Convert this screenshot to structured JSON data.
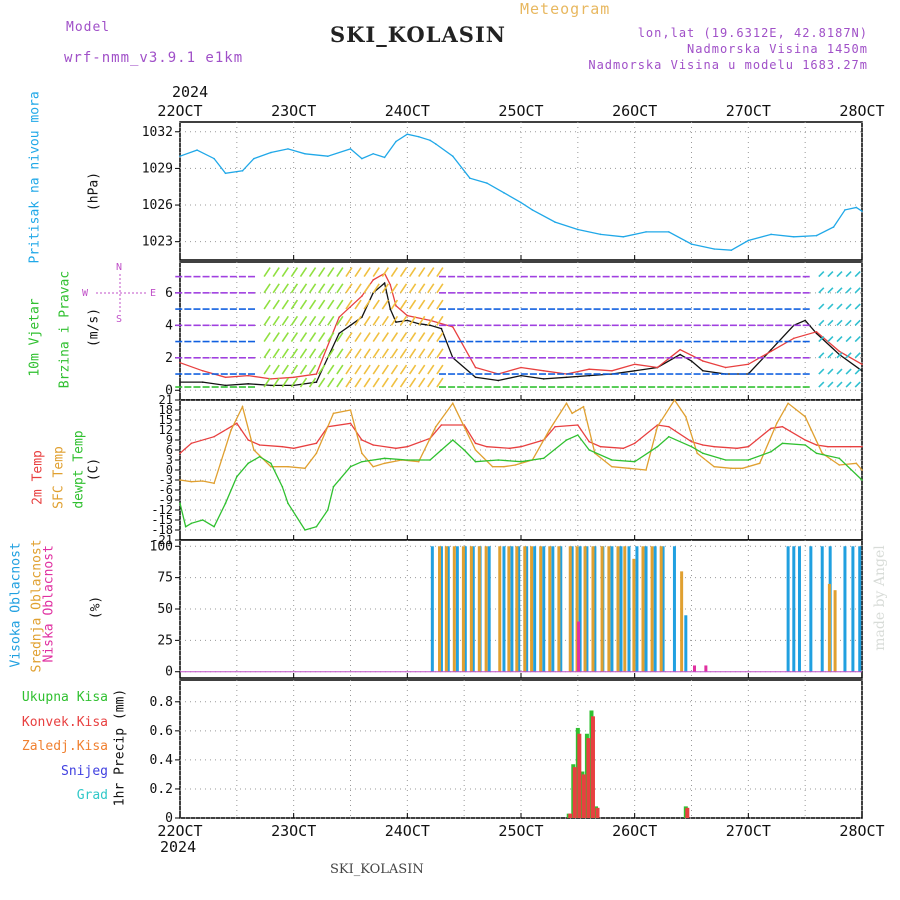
{
  "header": {
    "model_label": "Model",
    "model_name": "wrf-nmm_v3.9.1  e1km",
    "meteogram_label": "Meteogram",
    "station_title": "SKI_KOLASIN",
    "lonlat": "lon,lat (19.6312E, 42.8187N)",
    "altitude": "Nadmorska Visina 1450m",
    "model_altitude": "Nadmorska Visina u modelu 1683.27m",
    "colors": {
      "model": "#a050c8",
      "meteogram": "#e8b860",
      "info": "#a050c8"
    }
  },
  "footer": {
    "station": "SKI_KOLASIN",
    "watermark": "made by Angel"
  },
  "time_axis": {
    "top_year": "2024",
    "bottom_year": "2024",
    "labels": [
      "22OCT",
      "23OCT",
      "24OCT",
      "25OCT",
      "26OCT",
      "27OCT",
      "28OCT"
    ]
  },
  "panels": {
    "pressure": {
      "ylabel_left": "Pritisak na nivou mora",
      "ylabel_unit": "(hPa)",
      "colors": {
        "left": "#20a8e8"
      }
    },
    "wind": {
      "ylabel_left_1": "10m Vjetar",
      "ylabel_left_2": "Brzina i Pravac",
      "ylabel_unit": "(m/s)",
      "compass": [
        "N",
        "W",
        "E",
        "S"
      ],
      "colors": {
        "left": "#30c030",
        "compass": "#c050c8"
      }
    },
    "temperature": {
      "ylabel_1": "2m Temp",
      "ylabel_2": "SFC Temp",
      "ylabel_3": "dewpt Temp",
      "ylabel_unit": "(C)",
      "colors": {
        "t2m": "#e84040",
        "sfc": "#e0a030",
        "dewpt": "#30c030"
      }
    },
    "clouds": {
      "ylabel_1": "Visoka Oblacnost",
      "ylabel_2": "Srednja Oblacnost",
      "ylabel_3": "Niska Oblacnost",
      "ylabel_unit": "(%)",
      "colors": {
        "high": "#20a0e0",
        "mid": "#e0a030",
        "low": "#e030a0"
      }
    },
    "precip": {
      "legend": [
        "Ukupna Kisa",
        "Konvek.Kisa",
        "Zaledj.Kisa",
        "Snijeg",
        "Grad"
      ],
      "legend_colors": [
        "#30c030",
        "#e84040",
        "#f08030",
        "#4040e0",
        "#30c8c8"
      ],
      "ylabel_unit": "1hr Precip (mm)"
    }
  },
  "chart_data": [
    {
      "type": "line",
      "title": "",
      "series": [
        {
          "name": "Pritisak na nivou mora",
          "color": "#20a8e8",
          "x": [
            22.0,
            22.15,
            22.3,
            22.4,
            22.55,
            22.65,
            22.8,
            22.95,
            23.1,
            23.3,
            23.5,
            23.6,
            23.7,
            23.8,
            23.9,
            24.0,
            24.1,
            24.2,
            24.25,
            24.4,
            24.55,
            24.7,
            24.85,
            25.0,
            25.1,
            25.3,
            25.5,
            25.7,
            25.9,
            26.1,
            26.3,
            26.5,
            26.7,
            26.85,
            27.0,
            27.2,
            27.4,
            27.6,
            27.75,
            27.85,
            27.95,
            28.0
          ],
          "values": [
            1030.0,
            1030.5,
            1029.8,
            1028.6,
            1028.8,
            1029.8,
            1030.3,
            1030.6,
            1030.2,
            1030.0,
            1030.6,
            1029.8,
            1030.2,
            1029.9,
            1031.2,
            1031.8,
            1031.6,
            1031.3,
            1031.0,
            1030.0,
            1028.2,
            1027.8,
            1027.0,
            1026.2,
            1025.6,
            1024.6,
            1024.0,
            1023.6,
            1023.4,
            1023.8,
            1023.8,
            1022.8,
            1022.4,
            1022.3,
            1023.1,
            1023.6,
            1023.4,
            1023.5,
            1024.2,
            1025.6,
            1025.8,
            1025.5
          ]
        }
      ],
      "ylim": [
        1021.5,
        1032.8
      ],
      "yticks": [
        1023,
        1026,
        1029,
        1032
      ],
      "xlim": [
        22,
        28
      ]
    },
    {
      "type": "line",
      "title": "",
      "series": [
        {
          "name": "wind speed",
          "color": "#111111",
          "x": [
            22.0,
            22.2,
            22.4,
            22.6,
            22.8,
            23.0,
            23.2,
            23.4,
            23.5,
            23.6,
            23.7,
            23.8,
            23.85,
            23.9,
            24.0,
            24.1,
            24.2,
            24.3,
            24.4,
            24.6,
            24.8,
            25.0,
            25.2,
            25.4,
            25.6,
            25.8,
            26.0,
            26.2,
            26.4,
            26.5,
            26.6,
            26.8,
            27.0,
            27.2,
            27.4,
            27.5,
            27.6,
            27.8,
            28.0
          ],
          "values": [
            0.5,
            0.5,
            0.3,
            0.4,
            0.3,
            0.3,
            0.5,
            3.5,
            4.0,
            4.5,
            6.0,
            6.6,
            5.0,
            4.2,
            4.3,
            4.1,
            4.0,
            3.8,
            2.0,
            0.8,
            0.6,
            0.9,
            0.7,
            0.8,
            0.9,
            1.0,
            1.2,
            1.4,
            2.2,
            1.8,
            1.2,
            1.0,
            1.0,
            2.5,
            4.0,
            4.3,
            3.5,
            2.2,
            1.2
          ]
        },
        {
          "name": "gust",
          "color": "#e84040",
          "x": [
            22.0,
            22.2,
            22.4,
            22.6,
            22.8,
            23.0,
            23.2,
            23.4,
            23.6,
            23.7,
            23.8,
            23.85,
            23.9,
            24.0,
            24.2,
            24.4,
            24.6,
            24.8,
            25.0,
            25.2,
            25.4,
            25.6,
            25.8,
            26.0,
            26.2,
            26.4,
            26.6,
            26.8,
            27.0,
            27.2,
            27.4,
            27.6,
            27.8,
            28.0
          ],
          "values": [
            1.7,
            1.2,
            0.8,
            0.9,
            0.7,
            0.8,
            1.0,
            4.5,
            5.8,
            6.8,
            7.2,
            6.5,
            5.2,
            4.6,
            4.3,
            3.9,
            1.4,
            1.0,
            1.4,
            1.2,
            1.0,
            1.3,
            1.2,
            1.6,
            1.4,
            2.5,
            1.8,
            1.4,
            1.6,
            2.4,
            3.2,
            3.6,
            2.4,
            1.6
          ]
        }
      ],
      "ylim": [
        -0.6,
        7.9
      ],
      "yticks": [
        0,
        2,
        4,
        6
      ],
      "xlim": [
        22,
        28
      ]
    },
    {
      "type": "line",
      "title": "",
      "series": [
        {
          "name": "2m Temp",
          "color": "#e84040",
          "x": [
            22.0,
            22.1,
            22.3,
            22.5,
            22.6,
            22.7,
            22.9,
            23.0,
            23.2,
            23.3,
            23.5,
            23.6,
            23.7,
            23.9,
            24.0,
            24.2,
            24.3,
            24.5,
            24.6,
            24.7,
            24.9,
            25.0,
            25.2,
            25.3,
            25.5,
            25.6,
            25.7,
            25.9,
            26.0,
            26.2,
            26.3,
            26.5,
            26.6,
            26.7,
            26.9,
            27.0,
            27.2,
            27.3,
            27.5,
            27.6,
            27.7,
            27.9,
            28.0
          ],
          "values": [
            5.0,
            8.0,
            10.0,
            14.0,
            9.0,
            7.5,
            7.0,
            6.5,
            8.0,
            13.0,
            14.0,
            9.0,
            7.5,
            6.5,
            7.0,
            9.5,
            13.5,
            13.5,
            8.0,
            7.0,
            6.5,
            7.0,
            9.0,
            13.0,
            13.5,
            8.5,
            7.0,
            6.5,
            8.0,
            13.5,
            13.0,
            8.5,
            7.5,
            7.0,
            6.5,
            7.0,
            12.5,
            13.0,
            9.0,
            7.5,
            7.0,
            7.0,
            7.0
          ]
        },
        {
          "name": "SFC Temp",
          "color": "#e0a030",
          "x": [
            22.0,
            22.1,
            22.2,
            22.3,
            22.45,
            22.55,
            22.65,
            22.8,
            22.95,
            23.1,
            23.2,
            23.35,
            23.5,
            23.6,
            23.7,
            23.8,
            23.95,
            24.1,
            24.25,
            24.4,
            24.6,
            24.75,
            24.85,
            24.95,
            25.1,
            25.25,
            25.4,
            25.45,
            25.55,
            25.65,
            25.8,
            25.95,
            26.1,
            26.2,
            26.35,
            26.45,
            26.55,
            26.7,
            26.85,
            26.95,
            27.1,
            27.25,
            27.35,
            27.5,
            27.65,
            27.8,
            27.95,
            28.0
          ],
          "values": [
            -3.0,
            -3.5,
            -3.3,
            -4.0,
            12.0,
            19.0,
            6.0,
            1.0,
            1.0,
            0.5,
            5.0,
            17.0,
            18.0,
            5.0,
            1.0,
            2.0,
            3.0,
            2.5,
            13.0,
            20.0,
            6.0,
            1.0,
            1.0,
            1.5,
            3.0,
            12.0,
            20.0,
            17.0,
            19.0,
            5.0,
            1.0,
            0.5,
            0.0,
            13.0,
            21.0,
            16.0,
            5.0,
            1.0,
            0.5,
            0.5,
            2.0,
            14.0,
            20.0,
            16.0,
            5.0,
            1.5,
            2.0,
            0.0
          ]
        },
        {
          "name": "dewpt Temp",
          "color": "#30c030",
          "x": [
            22.0,
            22.05,
            22.1,
            22.2,
            22.3,
            22.4,
            22.5,
            22.6,
            22.7,
            22.8,
            22.9,
            22.95,
            23.1,
            23.2,
            23.3,
            23.35,
            23.5,
            23.6,
            23.8,
            24.0,
            24.2,
            24.3,
            24.4,
            24.5,
            24.6,
            24.8,
            25.0,
            25.2,
            25.4,
            25.5,
            25.6,
            25.8,
            26.0,
            26.2,
            26.3,
            26.5,
            26.6,
            26.8,
            27.0,
            27.2,
            27.3,
            27.5,
            27.6,
            27.8,
            28.0
          ],
          "values": [
            -10.0,
            -17.0,
            -16.0,
            -15.0,
            -17.0,
            -10.0,
            -2.0,
            2.0,
            4.0,
            2.0,
            -5.0,
            -10.0,
            -18.0,
            -17.0,
            -12.0,
            -5.0,
            1.0,
            2.5,
            3.5,
            3.0,
            3.0,
            6.0,
            9.0,
            6.0,
            2.5,
            3.0,
            2.5,
            3.5,
            9.0,
            10.5,
            6.0,
            3.0,
            2.5,
            7.0,
            10.0,
            7.0,
            5.0,
            3.0,
            3.0,
            5.5,
            8.0,
            7.5,
            5.0,
            3.5,
            -3.0
          ]
        }
      ],
      "ylim": [
        -21,
        21
      ],
      "yticks": [
        -21,
        -18,
        -15,
        -12,
        -9,
        -6,
        -3,
        0,
        3,
        6,
        9,
        12,
        15,
        18,
        21
      ],
      "xlim": [
        22,
        28
      ]
    },
    {
      "type": "bar",
      "title": "",
      "series": [
        {
          "name": "Visoka Oblacnost",
          "color": "#20a0e0",
          "x": [
            24.22,
            24.3,
            24.36,
            24.44,
            24.51,
            24.58,
            24.64,
            24.72,
            24.85,
            24.92,
            24.98,
            25.05,
            25.12,
            25.2,
            25.28,
            25.35,
            25.45,
            25.52,
            25.58,
            25.65,
            25.72,
            25.8,
            25.88,
            25.95,
            26.02,
            26.1,
            26.18,
            26.25,
            26.35,
            26.45,
            27.35,
            27.4,
            27.45,
            27.55,
            27.65,
            27.72,
            27.85,
            27.92,
            27.98
          ],
          "values": [
            100,
            100,
            100,
            100,
            100,
            100,
            100,
            100,
            100,
            100,
            100,
            100,
            100,
            100,
            100,
            100,
            100,
            100,
            100,
            100,
            100,
            100,
            100,
            100,
            100,
            100,
            100,
            100,
            100,
            45,
            100,
            100,
            100,
            100,
            100,
            100,
            100,
            100,
            100
          ]
        },
        {
          "name": "Srednja Oblacnost",
          "color": "#e0a030",
          "x": [
            24.27,
            24.33,
            24.4,
            24.48,
            24.55,
            24.62,
            24.68,
            24.8,
            24.88,
            24.95,
            25.02,
            25.08,
            25.16,
            25.24,
            25.32,
            25.42,
            25.48,
            25.55,
            25.62,
            25.7,
            25.76,
            25.84,
            25.9,
            25.98,
            26.06,
            26.14,
            26.22,
            26.4,
            27.7,
            27.75
          ],
          "values": [
            100,
            100,
            100,
            100,
            100,
            100,
            100,
            100,
            100,
            100,
            100,
            100,
            100,
            100,
            100,
            100,
            100,
            100,
            100,
            100,
            100,
            100,
            100,
            90,
            100,
            100,
            100,
            80,
            70,
            65
          ]
        },
        {
          "name": "Niska Oblacnost",
          "color": "#e030a0",
          "x": [
            25.48,
            26.5,
            26.6
          ],
          "values": [
            40,
            5,
            5
          ]
        }
      ],
      "ylim": [
        -5,
        105
      ],
      "yticks": [
        0,
        25,
        50,
        75,
        100
      ],
      "xlim": [
        22,
        28
      ]
    },
    {
      "type": "bar",
      "title": "",
      "series": [
        {
          "name": "Ukupna Kisa",
          "color": "#30c030",
          "x": [
            25.42,
            25.46,
            25.5,
            25.54,
            25.58,
            25.62,
            25.66,
            26.45
          ],
          "values": [
            0.03,
            0.37,
            0.62,
            0.32,
            0.58,
            0.74,
            0.08,
            0.08
          ]
        },
        {
          "name": "Konvek.Kisa",
          "color": "#e84040",
          "x": [
            25.42,
            25.46,
            25.5,
            25.54,
            25.58,
            25.62,
            25.66,
            26.45
          ],
          "values": [
            0.03,
            0.35,
            0.58,
            0.3,
            0.55,
            0.7,
            0.07,
            0.07
          ]
        }
      ],
      "ylim": [
        0,
        0.95
      ],
      "yticks": [
        0,
        0.2,
        0.4,
        0.6,
        0.8
      ],
      "xlim": [
        22,
        28
      ]
    }
  ]
}
